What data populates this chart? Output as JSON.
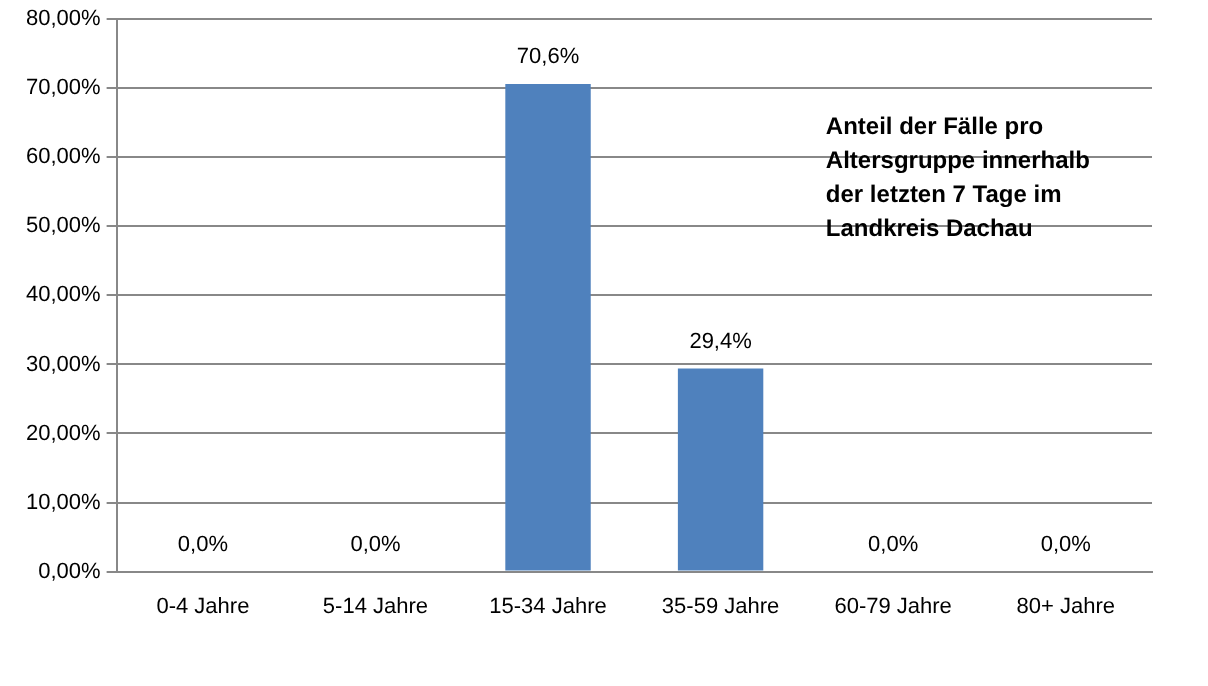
{
  "chart_data": {
    "type": "bar",
    "title": "Anteil der Fälle pro Altersgruppe innerhalb der letzten 7 Tage im Landkreis Dachau",
    "categories": [
      "0-4 Jahre",
      "5-14 Jahre",
      "15-34 Jahre",
      "35-59 Jahre",
      "60-79 Jahre",
      "80+ Jahre"
    ],
    "values": [
      0,
      0,
      70.6,
      29.4,
      0,
      0
    ],
    "value_labels": [
      "0,0%",
      "0,0%",
      "70,6%",
      "29,4%",
      "0,0%",
      "0,0%"
    ],
    "color": "#4f81bd",
    "ylim": [
      0,
      80
    ],
    "yticks": [
      {
        "value": 0,
        "label": "0,00%"
      },
      {
        "value": 10,
        "label": "10,00%"
      },
      {
        "value": 20,
        "label": "20,00%"
      },
      {
        "value": 30,
        "label": "30,00%"
      },
      {
        "value": 40,
        "label": "40,00%"
      },
      {
        "value": 50,
        "label": "50,00%"
      },
      {
        "value": 60,
        "label": "60,00%"
      },
      {
        "value": 70,
        "label": "70,00%"
      },
      {
        "value": 80,
        "label": "80,00%"
      }
    ],
    "grid": "y",
    "legend": false
  }
}
